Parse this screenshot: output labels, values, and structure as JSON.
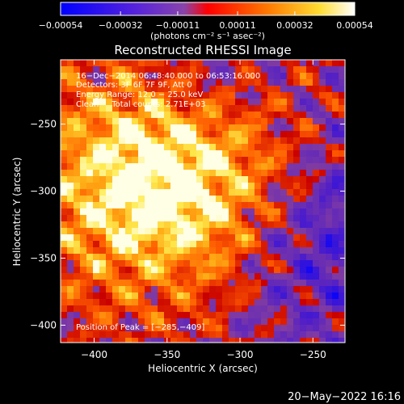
{
  "chart_data": {
    "type": "heatmap",
    "title": "Reconstructed RHESSI Image",
    "xlabel": "Heliocentric X (arcsec)",
    "ylabel": "Heliocentric Y (arcsec)",
    "xlim": [
      -423,
      -228
    ],
    "ylim": [
      -413,
      -202
    ],
    "x_ticks": [
      -400,
      -350,
      -300,
      -250
    ],
    "y_ticks": [
      -400,
      -350,
      -300,
      -250
    ],
    "x_tick_labels": [
      "−400",
      "−350",
      "−300",
      "−250"
    ],
    "y_tick_labels": [
      "−400",
      "−350",
      "−300",
      "−250"
    ],
    "colorbar": {
      "range": [
        -0.00054,
        0.00054
      ],
      "ticks": [
        -0.00054,
        -0.00032,
        -0.00011,
        0.00011,
        0.00032,
        0.00054
      ],
      "tick_labels": [
        "−0.00054",
        "−0.00032",
        "−0.00011",
        "0.00011",
        "0.00032",
        "0.00054"
      ],
      "units_label": "(photons cm⁻² s⁻¹ asec⁻²)"
    },
    "annotations": [
      "16−Dec−2014 06:48:40.000 to 06:53:16.000",
      "Detectors: 3F 6F 7F 9F, Att 0",
      "Energy Range: 12.0 − 25.0 keV",
      "Clean     Total counts: 2.71E+03"
    ],
    "peak_label": "Position of Peak = [−285,−409]",
    "peak_position": [
      -285,
      -409
    ],
    "grid": false
  },
  "footer": {
    "datestamp": "20−May−2022 16:16"
  },
  "colors": {
    "background": "#000000",
    "text": "#ffffff",
    "negative_low": "#0000ff",
    "negative_mid": "#7733cc",
    "zero": "#ff0000",
    "positive_mid": "#ff9900",
    "positive_high": "#ffffff"
  }
}
